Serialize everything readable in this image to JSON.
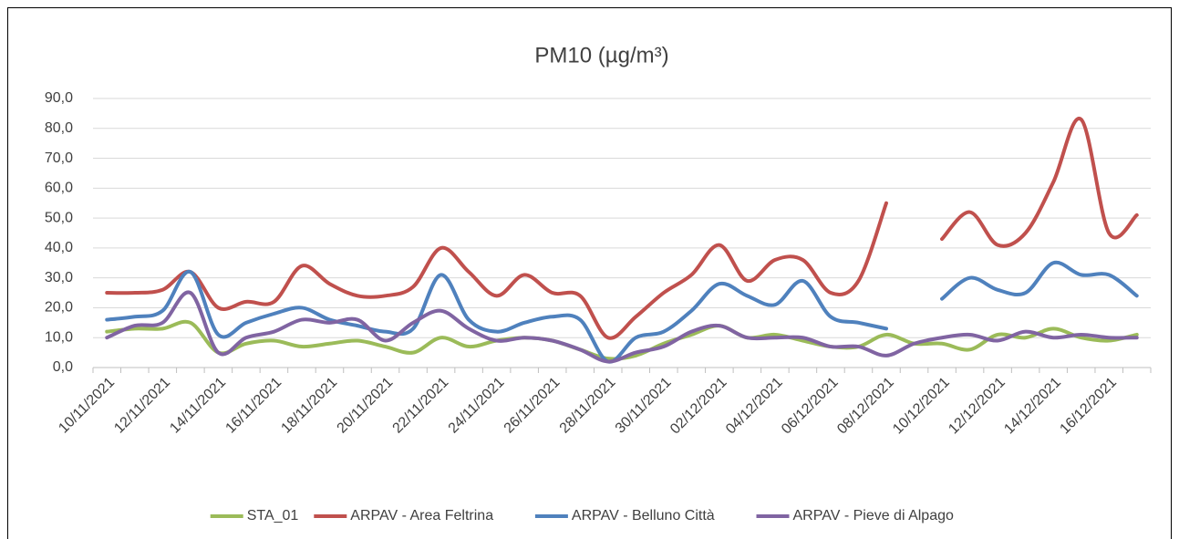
{
  "chart_data": {
    "type": "line",
    "title": "PM10 (µg/m³)",
    "categories": [
      "10/11/2021",
      null,
      "12/11/2021",
      null,
      "14/11/2021",
      null,
      "16/11/2021",
      null,
      "18/11/2021",
      null,
      "20/11/2021",
      null,
      "22/11/2021",
      null,
      "24/11/2021",
      null,
      "26/11/2021",
      null,
      "28/11/2021",
      null,
      "30/11/2021",
      null,
      "02/12/2021",
      null,
      "04/12/2021",
      null,
      "06/12/2021",
      null,
      "08/12/2021",
      null,
      "10/12/2021",
      null,
      "12/12/2021",
      null,
      "14/12/2021",
      null,
      "16/12/2021",
      null
    ],
    "series": [
      {
        "name": "STA_01",
        "color": "#9bbb59",
        "values": [
          12,
          13,
          13,
          15,
          5,
          8,
          9,
          7,
          8,
          9,
          7,
          5,
          10,
          7,
          9,
          10,
          9,
          6,
          3,
          4,
          8,
          11,
          14,
          10,
          11,
          9,
          7,
          7,
          11,
          8,
          8,
          6,
          11,
          10,
          13,
          10,
          9,
          11
        ]
      },
      {
        "name": "ARPAV - Area Feltrina",
        "color": "#c0504d",
        "values": [
          25,
          25,
          26,
          32,
          20,
          22,
          22,
          34,
          28,
          24,
          24,
          27,
          40,
          32,
          24,
          31,
          25,
          24,
          10,
          17,
          25,
          31,
          41,
          29,
          36,
          36,
          25,
          29,
          55,
          null,
          43,
          52,
          41,
          45,
          62,
          83,
          45,
          51
        ]
      },
      {
        "name": "ARPAV - Belluno Città",
        "color": "#4f81bd",
        "values": [
          16,
          17,
          19,
          32,
          11,
          15,
          18,
          20,
          16,
          14,
          12,
          13,
          31,
          16,
          12,
          15,
          17,
          16,
          2,
          10,
          12,
          19,
          28,
          24,
          21,
          29,
          17,
          15,
          13,
          null,
          23,
          30,
          26,
          25,
          35,
          31,
          31,
          24
        ]
      },
      {
        "name": "ARPAV - Pieve di Alpago",
        "color": "#8064a2",
        "values": [
          10,
          14,
          15,
          25,
          5,
          10,
          12,
          16,
          15,
          16,
          9,
          15,
          19,
          13,
          9,
          10,
          9,
          6,
          2,
          5,
          7,
          12,
          14,
          10,
          10,
          10,
          7,
          7,
          4,
          8,
          10,
          11,
          9,
          12,
          10,
          11,
          10,
          10
        ]
      }
    ],
    "ylim": [
      0,
      90
    ],
    "yticks": [
      {
        "value": 0,
        "label": "0,0"
      },
      {
        "value": 10,
        "label": "10,0"
      },
      {
        "value": 20,
        "label": "20,0"
      },
      {
        "value": 30,
        "label": "30,0"
      },
      {
        "value": 40,
        "label": "40,0"
      },
      {
        "value": 50,
        "label": "50,0"
      },
      {
        "value": 60,
        "label": "60,0"
      },
      {
        "value": 70,
        "label": "70,0"
      },
      {
        "value": 80,
        "label": "80,0"
      },
      {
        "value": 90,
        "label": "90,0"
      }
    ],
    "grid": true,
    "legend": "bottom"
  }
}
